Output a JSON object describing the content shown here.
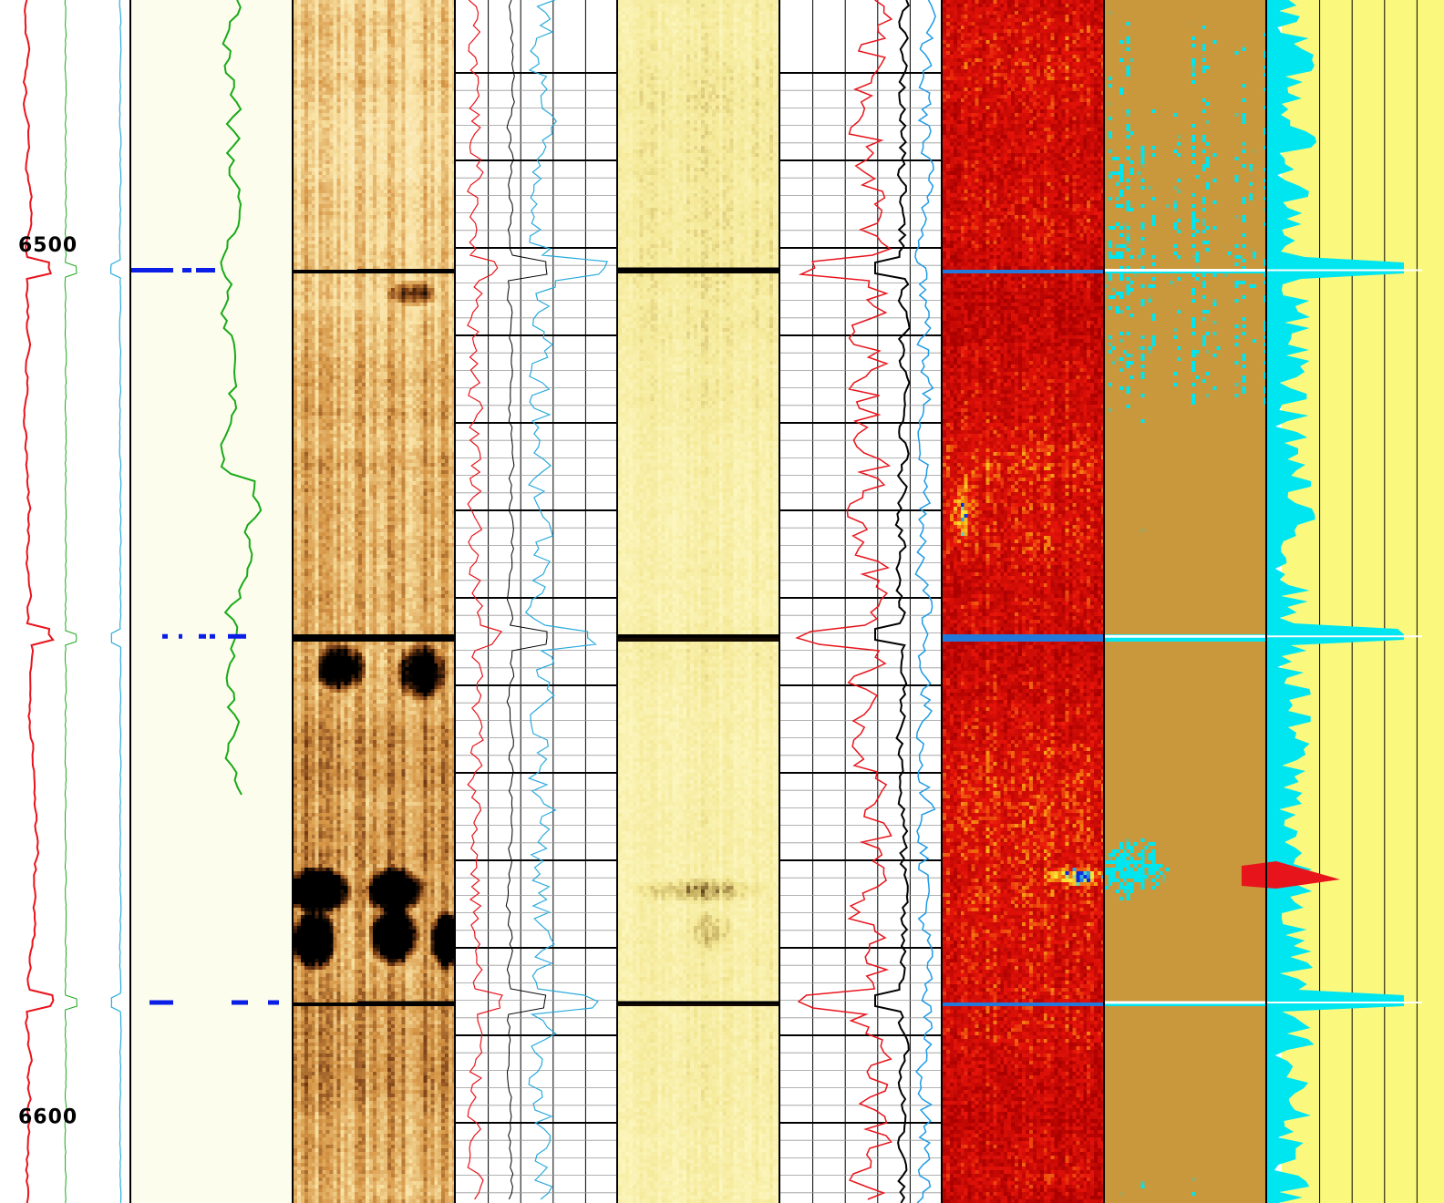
{
  "chart_data": {
    "type": "well-log",
    "depth_axis": {
      "labels": [
        "6500",
        "6600"
      ],
      "range": [
        6472,
        6610
      ],
      "reversed": true
    },
    "markers": [
      6503,
      6545,
      6587
    ],
    "tracks": [
      {
        "id": "depth",
        "curves": [
          "red",
          "green",
          "cyan"
        ]
      },
      {
        "id": "curve-green",
        "background": "#fdfded"
      },
      {
        "id": "image-1",
        "palette": "brown-yellow"
      },
      {
        "id": "curves-1",
        "grid": true
      },
      {
        "id": "image-2",
        "palette": "yellow-olive"
      },
      {
        "id": "curves-2",
        "grid": true
      },
      {
        "id": "image-3",
        "palette": "red-yellow-blue"
      },
      {
        "id": "image-4",
        "palette": "ochre-cyan"
      },
      {
        "id": "area",
        "background": "#faf97e",
        "fill": "#00e6f0"
      }
    ],
    "colors": {
      "red": "#e8141c",
      "green": "#1aaa1a",
      "cyan": "#28aadc",
      "black": "#000000",
      "blue": "#0a1ee6",
      "ochre": "#c9973c",
      "aqua": "#00e6f0",
      "yellow": "#faf97e"
    }
  }
}
